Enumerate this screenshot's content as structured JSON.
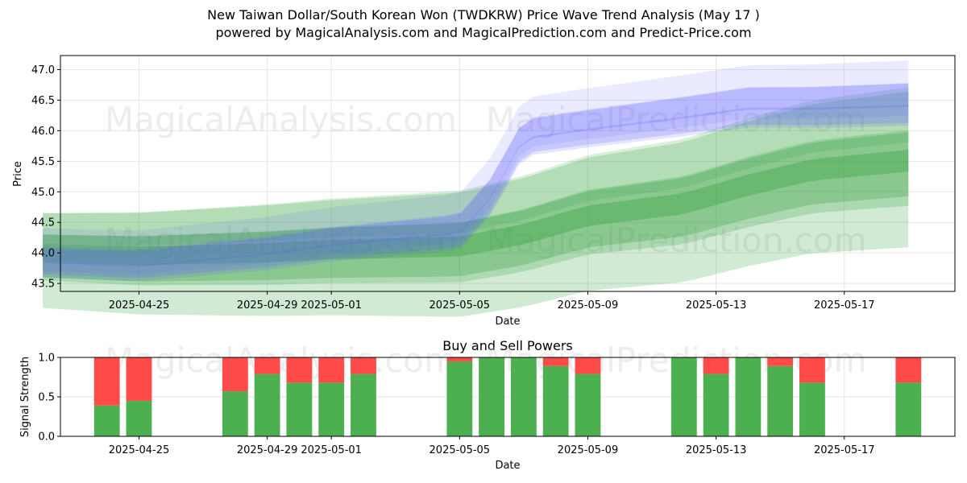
{
  "title_line1": "New Taiwan Dollar/South Korean Won (TWDKRW) Price Wave Trend Analysis (May 17 )",
  "title_line2": "powered by MagicalAnalysis.com and MagicalPrediction.com and Predict-Price.com",
  "watermarks": [
    "MagicalAnalysis.com",
    "MagicalPrediction.com"
  ],
  "colors": {
    "buy": "#4caf50",
    "sell": "#ff4a4a",
    "green_band": "#2e9e3a",
    "blue_band": "#5b5bff"
  },
  "chart_data": [
    {
      "type": "area",
      "xlabel": "Date",
      "ylabel": "Price",
      "ylim": [
        43.37,
        47.23
      ],
      "x_ticks": [
        "2025-04-25",
        "2025-04-29",
        "2025-05-01",
        "2025-05-05",
        "2025-05-09",
        "2025-05-13",
        "2025-05-17"
      ],
      "y_ticks": [
        "43.5",
        "44.0",
        "44.5",
        "45.0",
        "45.5",
        "46.0",
        "46.5",
        "47.0"
      ],
      "x_range": [
        "2025-04-22",
        "2025-05-20"
      ],
      "grid": true,
      "green_center": [
        {
          "x": "2025-04-22",
          "y": 43.95
        },
        {
          "x": "2025-04-25",
          "y": 43.9
        },
        {
          "x": "2025-04-29",
          "y": 43.95
        },
        {
          "x": "2025-05-01",
          "y": 44.0
        },
        {
          "x": "2025-05-05",
          "y": 44.05
        },
        {
          "x": "2025-05-07",
          "y": 44.25
        },
        {
          "x": "2025-05-09",
          "y": 44.55
        },
        {
          "x": "2025-05-12",
          "y": 44.75
        },
        {
          "x": "2025-05-14",
          "y": 45.05
        },
        {
          "x": "2025-05-16",
          "y": 45.3
        },
        {
          "x": "2025-05-19",
          "y": 45.45
        }
      ],
      "blue_center": [
        {
          "x": "2025-04-22",
          "y": 43.9
        },
        {
          "x": "2025-04-25",
          "y": 43.85
        },
        {
          "x": "2025-04-29",
          "y": 44.05
        },
        {
          "x": "2025-05-01",
          "y": 44.2
        },
        {
          "x": "2025-05-05",
          "y": 44.4
        },
        {
          "x": "2025-05-06",
          "y": 45.0
        },
        {
          "x": "2025-05-07",
          "y": 45.95
        },
        {
          "x": "2025-05-09",
          "y": 46.1
        },
        {
          "x": "2025-05-12",
          "y": 46.3
        },
        {
          "x": "2025-05-14",
          "y": 46.45
        },
        {
          "x": "2025-05-16",
          "y": 46.45
        },
        {
          "x": "2025-05-19",
          "y": 46.5
        }
      ]
    },
    {
      "type": "bar",
      "title": "Buy and Sell Powers",
      "xlabel": "Date",
      "ylabel": "Signal Strength",
      "ylim": [
        0,
        1.0
      ],
      "y_ticks": [
        "0.0",
        "0.5",
        "1.0"
      ],
      "x_ticks": [
        "2025-04-25",
        "2025-04-29",
        "2025-05-01",
        "2025-05-05",
        "2025-05-09",
        "2025-05-13",
        "2025-05-17"
      ],
      "x_range": [
        "2025-04-22",
        "2025-05-20"
      ],
      "dates": [
        "2025-04-24",
        "2025-04-25",
        "2025-04-28",
        "2025-04-29",
        "2025-04-30",
        "2025-05-01",
        "2025-05-02",
        "2025-05-05",
        "2025-05-06",
        "2025-05-07",
        "2025-05-08",
        "2025-05-09",
        "2025-05-12",
        "2025-05-13",
        "2025-05-14",
        "2025-05-15",
        "2025-05-16",
        "2025-05-19"
      ],
      "series": [
        {
          "name": "Buy",
          "values": [
            0.39,
            0.45,
            0.57,
            0.79,
            0.68,
            0.68,
            0.79,
            0.95,
            1.0,
            1.0,
            0.89,
            0.79,
            1.0,
            0.79,
            1.0,
            0.89,
            0.68,
            0.68
          ]
        },
        {
          "name": "Sell",
          "values": [
            0.61,
            0.55,
            0.43,
            0.21,
            0.32,
            0.32,
            0.21,
            0.05,
            0.0,
            0.0,
            0.11,
            0.21,
            0.0,
            0.21,
            0.0,
            0.11,
            0.32,
            0.32
          ]
        }
      ]
    }
  ]
}
